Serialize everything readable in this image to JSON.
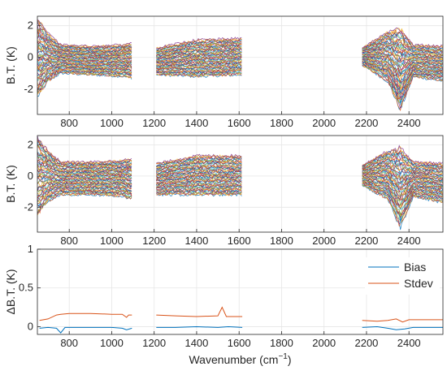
{
  "chart_data": [
    {
      "type": "line",
      "ylabel": "B.T. (K)",
      "xlabel": "",
      "xlim": [
        650,
        2560
      ],
      "ylim": [
        -3.6,
        2.6
      ],
      "xticks": [
        800,
        1000,
        1200,
        1400,
        1600,
        1800,
        2000,
        2200,
        2400
      ],
      "yticks": [
        -2,
        0,
        2
      ],
      "xtick_labels": [
        "800",
        "1000",
        "1200",
        "1400",
        "1600",
        "1800",
        "2000",
        "2200",
        "2400"
      ],
      "ytick_labels": [
        "-2",
        "0",
        "2"
      ],
      "grid": true,
      "bands": [
        [
          650,
          1095
        ],
        [
          1210,
          1615
        ],
        [
          2180,
          2560
        ]
      ],
      "series_count": 60,
      "envelope": [
        {
          "x": 650,
          "low": -2.5,
          "high": 2.5
        },
        {
          "x": 700,
          "low": -1.5,
          "high": 1.5
        },
        {
          "x": 760,
          "low": -1.0,
          "high": 0.8
        },
        {
          "x": 900,
          "low": -1.1,
          "high": 0.7
        },
        {
          "x": 1050,
          "low": -1.2,
          "high": 0.8
        },
        {
          "x": 1095,
          "low": -1.3,
          "high": 0.9
        },
        {
          "x": 1210,
          "low": -1.1,
          "high": 0.6
        },
        {
          "x": 1400,
          "low": -1.2,
          "high": 1.1
        },
        {
          "x": 1615,
          "low": -1.1,
          "high": 1.2
        },
        {
          "x": 2180,
          "low": -0.5,
          "high": 0.6
        },
        {
          "x": 2300,
          "low": -1.5,
          "high": 1.6
        },
        {
          "x": 2360,
          "low": -3.3,
          "high": 1.8
        },
        {
          "x": 2420,
          "low": -1.2,
          "high": 0.8
        },
        {
          "x": 2560,
          "low": -1.5,
          "high": 0.7
        }
      ]
    },
    {
      "type": "line",
      "ylabel": "B.T. (K)",
      "xlabel": "",
      "xlim": [
        650,
        2560
      ],
      "ylim": [
        -3.6,
        2.6
      ],
      "xticks": [
        800,
        1000,
        1200,
        1400,
        1600,
        1800,
        2000,
        2200,
        2400
      ],
      "yticks": [
        -2,
        0,
        2
      ],
      "xtick_labels": [
        "800",
        "1000",
        "1200",
        "1400",
        "1600",
        "1800",
        "2000",
        "2200",
        "2400"
      ],
      "ytick_labels": [
        "-2",
        "0",
        "2"
      ],
      "grid": true,
      "bands": [
        [
          650,
          1095
        ],
        [
          1210,
          1615
        ],
        [
          2180,
          2560
        ]
      ],
      "series_count": 60,
      "envelope": [
        {
          "x": 650,
          "low": -2.5,
          "high": 2.5
        },
        {
          "x": 700,
          "low": -1.6,
          "high": 1.6
        },
        {
          "x": 760,
          "low": -1.2,
          "high": 0.9
        },
        {
          "x": 900,
          "low": -1.2,
          "high": 0.9
        },
        {
          "x": 1050,
          "low": -1.3,
          "high": 1.0
        },
        {
          "x": 1095,
          "low": -1.5,
          "high": 1.1
        },
        {
          "x": 1210,
          "low": -1.2,
          "high": 0.8
        },
        {
          "x": 1400,
          "low": -1.2,
          "high": 1.3
        },
        {
          "x": 1615,
          "low": -1.2,
          "high": 1.3
        },
        {
          "x": 2180,
          "low": -0.6,
          "high": 0.7
        },
        {
          "x": 2300,
          "low": -1.5,
          "high": 1.6
        },
        {
          "x": 2360,
          "low": -3.3,
          "high": 1.8
        },
        {
          "x": 2420,
          "low": -1.3,
          "high": 0.9
        },
        {
          "x": 2560,
          "low": -1.7,
          "high": 0.8
        }
      ]
    },
    {
      "type": "line",
      "ylabel": "ΔB.T. (K)",
      "xlabel_main": "Wavenumber (cm",
      "xlabel_sup": "−1",
      "xlabel_close": ")",
      "xlim": [
        650,
        2560
      ],
      "ylim": [
        -0.1,
        1.0
      ],
      "xticks": [
        800,
        1000,
        1200,
        1400,
        1600,
        1800,
        2000,
        2200,
        2400
      ],
      "yticks": [
        0,
        0.5,
        1
      ],
      "xtick_labels": [
        "800",
        "1000",
        "1200",
        "1400",
        "1600",
        "1800",
        "2000",
        "2200",
        "2400"
      ],
      "ytick_labels": [
        "0",
        "0.5",
        "1"
      ],
      "grid": true,
      "legend_position": "top-right",
      "series": [
        {
          "name": "Bias",
          "color": "#0072bd",
          "segments": [
            [
              [
                660,
                -0.02
              ],
              [
                700,
                -0.01
              ],
              [
                740,
                -0.02
              ],
              [
                760,
                -0.08
              ],
              [
                780,
                -0.01
              ],
              [
                900,
                -0.01
              ],
              [
                1000,
                -0.01
              ],
              [
                1050,
                -0.02
              ],
              [
                1070,
                -0.04
              ],
              [
                1095,
                -0.02
              ]
            ],
            [
              [
                1210,
                -0.01
              ],
              [
                1300,
                -0.01
              ],
              [
                1400,
                0.0
              ],
              [
                1500,
                -0.01
              ],
              [
                1550,
                0.0
              ],
              [
                1615,
                -0.01
              ]
            ],
            [
              [
                2180,
                -0.01
              ],
              [
                2250,
                0.0
              ],
              [
                2300,
                -0.02
              ],
              [
                2340,
                -0.04
              ],
              [
                2380,
                -0.03
              ],
              [
                2420,
                -0.01
              ],
              [
                2560,
                -0.01
              ]
            ]
          ]
        },
        {
          "name": "Stdev",
          "color": "#d95319",
          "segments": [
            [
              [
                660,
                0.08
              ],
              [
                700,
                0.1
              ],
              [
                740,
                0.15
              ],
              [
                760,
                0.16
              ],
              [
                800,
                0.17
              ],
              [
                900,
                0.17
              ],
              [
                1000,
                0.16
              ],
              [
                1050,
                0.16
              ],
              [
                1070,
                0.12
              ],
              [
                1080,
                0.15
              ],
              [
                1095,
                0.15
              ]
            ],
            [
              [
                1210,
                0.15
              ],
              [
                1300,
                0.14
              ],
              [
                1400,
                0.13
              ],
              [
                1500,
                0.14
              ],
              [
                1520,
                0.25
              ],
              [
                1540,
                0.13
              ],
              [
                1615,
                0.13
              ]
            ],
            [
              [
                2180,
                0.08
              ],
              [
                2250,
                0.07
              ],
              [
                2300,
                0.08
              ],
              [
                2340,
                0.1
              ],
              [
                2370,
                0.06
              ],
              [
                2400,
                0.09
              ],
              [
                2560,
                0.09
              ]
            ]
          ]
        }
      ]
    }
  ]
}
